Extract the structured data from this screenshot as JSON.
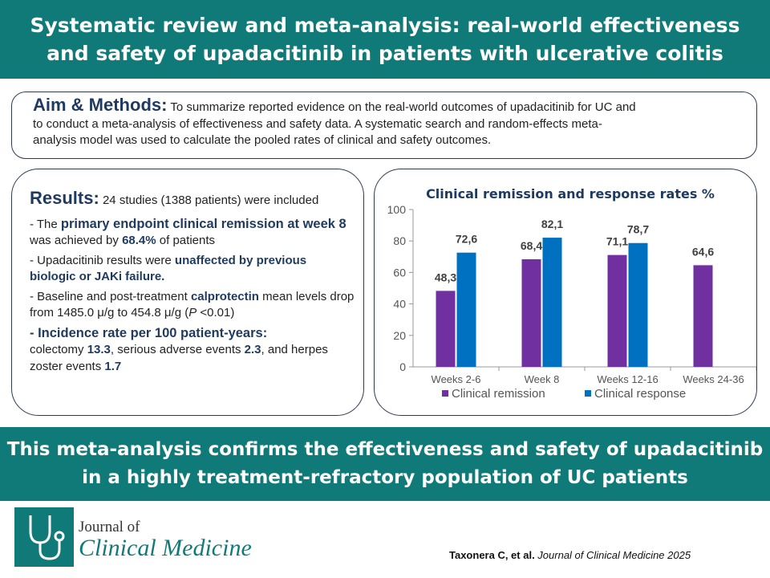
{
  "header": {
    "title_line1": "Systematic review and meta-analysis: real-world effectiveness",
    "title_line2": "and safety of upadacitinib in patients with ulcerative colitis"
  },
  "aim": {
    "heading": "Aim & Methods:",
    "text1": " To summarize reported evidence on the real-world outcomes of upadacitinib for UC and",
    "text2": "to conduct a meta-analysis of effectiveness and safety data. A systematic search and random-effects meta-",
    "text3": "analysis model was used to calculate the pooled rates of clinical and safety outcomes."
  },
  "results": {
    "heading": "Results:",
    "intro": " 24 studies (1388 patients) were included",
    "p1_a": "- The ",
    "p1_hl": "primary endpoint clinical remission at week 8",
    "p1_b": " was achieved by ",
    "p1_val": "68.4%",
    "p1_c": " of patients",
    "p2_a": "- Upadacitinib results were ",
    "p2_hl": "unaffected by previous biologic or JAKi failure.",
    "p3_a": "- Baseline and post-treatment ",
    "p3_hl": "calprotectin",
    "p3_b": " mean levels drop from 1485.0 μ/g to 454.8 μ/g (",
    "p3_p": "P",
    "p3_c": " <0.01)",
    "p4_hl": "- Incidence rate per 100 patient-years:",
    "p4_a": "colectomy ",
    "p4_v1": "13.3",
    "p4_b": ", serious adverse events ",
    "p4_v2": "2.3",
    "p4_c": ", and herpes zoster events ",
    "p4_v3": "1.7"
  },
  "chart_data": {
    "type": "bar",
    "title": "Clinical remission and response rates %",
    "categories": [
      "Weeks 2-6",
      "Week 8",
      "Weeks 12-16",
      "Weeks 24-36"
    ],
    "series": [
      {
        "name": "Clinical remission",
        "values": [
          48.3,
          68.4,
          71.1,
          64.6
        ],
        "labels": [
          "48,3",
          "68,4",
          "71,1",
          "64,6"
        ],
        "color": "#7030a0"
      },
      {
        "name": "Clinical response",
        "values": [
          72.6,
          82.1,
          78.7,
          null
        ],
        "labels": [
          "72,6",
          "82,1",
          "78,7",
          ""
        ],
        "color": "#0070c0"
      }
    ],
    "ylim": [
      0,
      100
    ],
    "yticks": [
      0,
      20,
      40,
      60,
      80,
      100
    ],
    "legend": "bottom",
    "grid": false
  },
  "conclusion": {
    "line1": "This meta-analysis confirms the effectiveness and safety of upadacitinib",
    "line2": "in a highly treatment-refractory population of UC patients"
  },
  "footer": {
    "logo_line1": "Journal of",
    "logo_line2": "Clinical Medicine",
    "citation_authors": "Taxonera C, et al.",
    "citation_journal": " Journal of Clinical Medicine 2025"
  },
  "colors": {
    "teal": "#107a78",
    "navy": "#1f3a5f"
  }
}
